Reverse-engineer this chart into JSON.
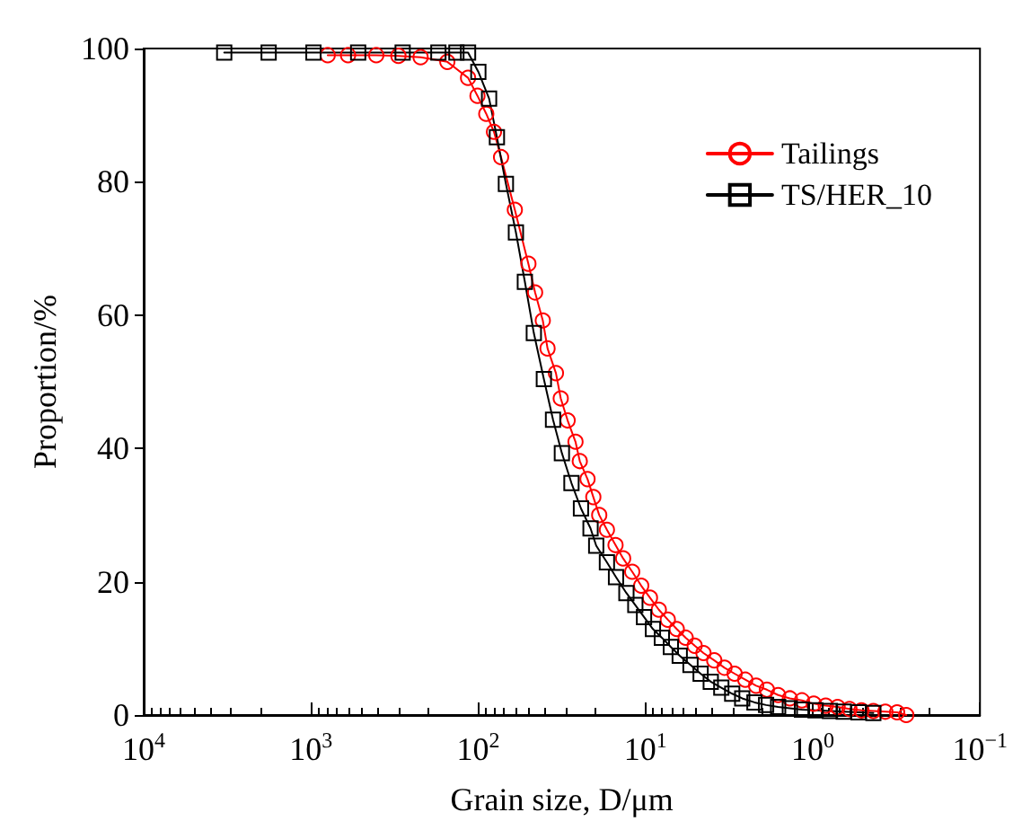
{
  "chart_data": {
    "type": "line",
    "xlabel": "Grain size, D/μm",
    "ylabel": "Proportion/%",
    "log": "x",
    "xlim": [
      10000,
      0.1
    ],
    "xticks": [
      {
        "value": 10000,
        "label": "10$^{4}$"
      },
      {
        "value": 1000,
        "label": "10$^{3}$"
      },
      {
        "value": 100,
        "label": "10$^{2}$"
      },
      {
        "value": 10,
        "label": "10$^{1}$"
      },
      {
        "value": 1,
        "label": "10$^{0}$"
      },
      {
        "value": 0.1,
        "label": "10$^{−1}$"
      }
    ],
    "ylim": [
      0,
      100
    ],
    "yticks": [
      0,
      20,
      40,
      60,
      80,
      100
    ],
    "grid": false,
    "legend": "top right",
    "line_style": "solid",
    "series": [
      {
        "name": "Tailings",
        "color": "#ff0000",
        "marker": "circle",
        "x": [
          794,
          600,
          407,
          300,
          221,
          153,
          115,
          101,
          89.5,
          80.5,
          73.0,
          60.4,
          50.1,
          45.7,
          41.1,
          38.5,
          34.3,
          32.1,
          29.2,
          26.2,
          24.7,
          22.2,
          20.5,
          18.9,
          17.0,
          15.1,
          13.6,
          12.0,
          10.6,
          9.4,
          8.32,
          7.35,
          6.5,
          5.75,
          5.08,
          4.5,
          3.88,
          3.37,
          2.93,
          2.53,
          2.18,
          1.88,
          1.61,
          1.37,
          1.16,
          0.986,
          0.836,
          0.71,
          0.603,
          0.511,
          0.434,
          0.368,
          0.313,
          0.276
        ],
        "values": [
          99.0,
          99.0,
          99.0,
          98.9,
          98.7,
          98.0,
          95.6,
          92.9,
          90.2,
          87.5,
          83.7,
          75.8,
          67.7,
          63.4,
          59.2,
          55.0,
          51.3,
          47.5,
          44.2,
          41.0,
          38.1,
          35.4,
          32.7,
          30.0,
          27.8,
          25.5,
          23.5,
          21.5,
          19.4,
          17.6,
          15.8,
          14.3,
          12.9,
          11.6,
          10.4,
          9.3,
          8.2,
          7.1,
          6.2,
          5.3,
          4.4,
          3.8,
          3.0,
          2.5,
          2.2,
          1.7,
          1.4,
          1.2,
          0.9,
          0.7,
          0.6,
          0.5,
          0.4,
          0
        ]
      },
      {
        "name": "TS/HER_10",
        "color": "#000000",
        "marker": "square",
        "x": [
          3300,
          1790,
          966,
          522,
          283,
          173,
          135,
          115,
          99.8,
          86.1,
          77.3,
          68.3,
          59.5,
          52.6,
          46.5,
          40.5,
          35.7,
          31.6,
          27.7,
          24.3,
          21.3,
          19.7,
          17.0,
          15.0,
          13.0,
          11.5,
          10.2,
          9.02,
          7.98,
          7.05,
          6.24,
          5.38,
          4.68,
          4.07,
          3.52,
          3.03,
          2.64,
          2.23,
          1.9,
          1.61,
          1.37,
          1.16,
          0.962,
          0.789,
          0.653,
          0.532,
          0.434
        ],
        "values": [
          99.4,
          99.4,
          99.4,
          99.4,
          99.4,
          99.4,
          99.4,
          99.4,
          96.5,
          92.5,
          86.7,
          79.7,
          72.4,
          65.0,
          57.3,
          50.4,
          44.3,
          39.3,
          34.8,
          31.0,
          28.0,
          25.4,
          22.9,
          20.7,
          18.3,
          16.5,
          14.7,
          12.9,
          11.6,
          10.2,
          8.9,
          7.5,
          6.2,
          5.0,
          4.1,
          3.2,
          2.5,
          1.9,
          1.5,
          1.2,
          1.0,
          0.8,
          0.7,
          0.6,
          0.5,
          0.4,
          0.3
        ]
      }
    ]
  }
}
